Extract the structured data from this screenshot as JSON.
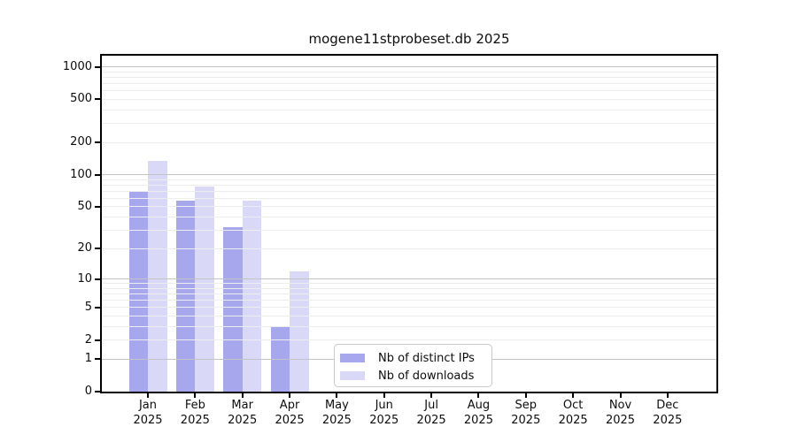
{
  "chart_data": {
    "type": "bar",
    "title": "mogene11stprobeset.db 2025",
    "categories": [
      "Jan",
      "Feb",
      "Mar",
      "Apr",
      "May",
      "Jun",
      "Jul",
      "Aug",
      "Sep",
      "Oct",
      "Nov",
      "Dec"
    ],
    "x_year_label": "2025",
    "series": [
      {
        "name": "Nb of distinct IPs",
        "color": "#a7a7ee",
        "values": [
          70,
          57,
          32,
          3,
          0,
          0,
          0,
          0,
          0,
          0,
          0,
          0
        ]
      },
      {
        "name": "Nb of downloads",
        "color": "#d9d9f7",
        "values": [
          135,
          77,
          57,
          12,
          0,
          0,
          0,
          0,
          0,
          0,
          0,
          0
        ]
      }
    ],
    "y_scale": "log1p",
    "ylim": [
      0,
      1270
    ],
    "y_ticks": [
      1000,
      500,
      200,
      100,
      50,
      20,
      10,
      5,
      2,
      1,
      0
    ],
    "major_grid_values": [
      1,
      10,
      100,
      1000
    ],
    "minor_grid_values": [
      2,
      3,
      4,
      5,
      6,
      7,
      8,
      9,
      20,
      30,
      40,
      50,
      60,
      70,
      80,
      90,
      200,
      300,
      400,
      500,
      600,
      700,
      800,
      900
    ],
    "grid": true,
    "legend_position": "lower-center",
    "colors": {
      "major_grid": "#c3c3c3",
      "minor_grid": "#ededed",
      "axis": "#000000",
      "legend_border": "#c9c9c9",
      "text": "#0d0d0d"
    }
  }
}
